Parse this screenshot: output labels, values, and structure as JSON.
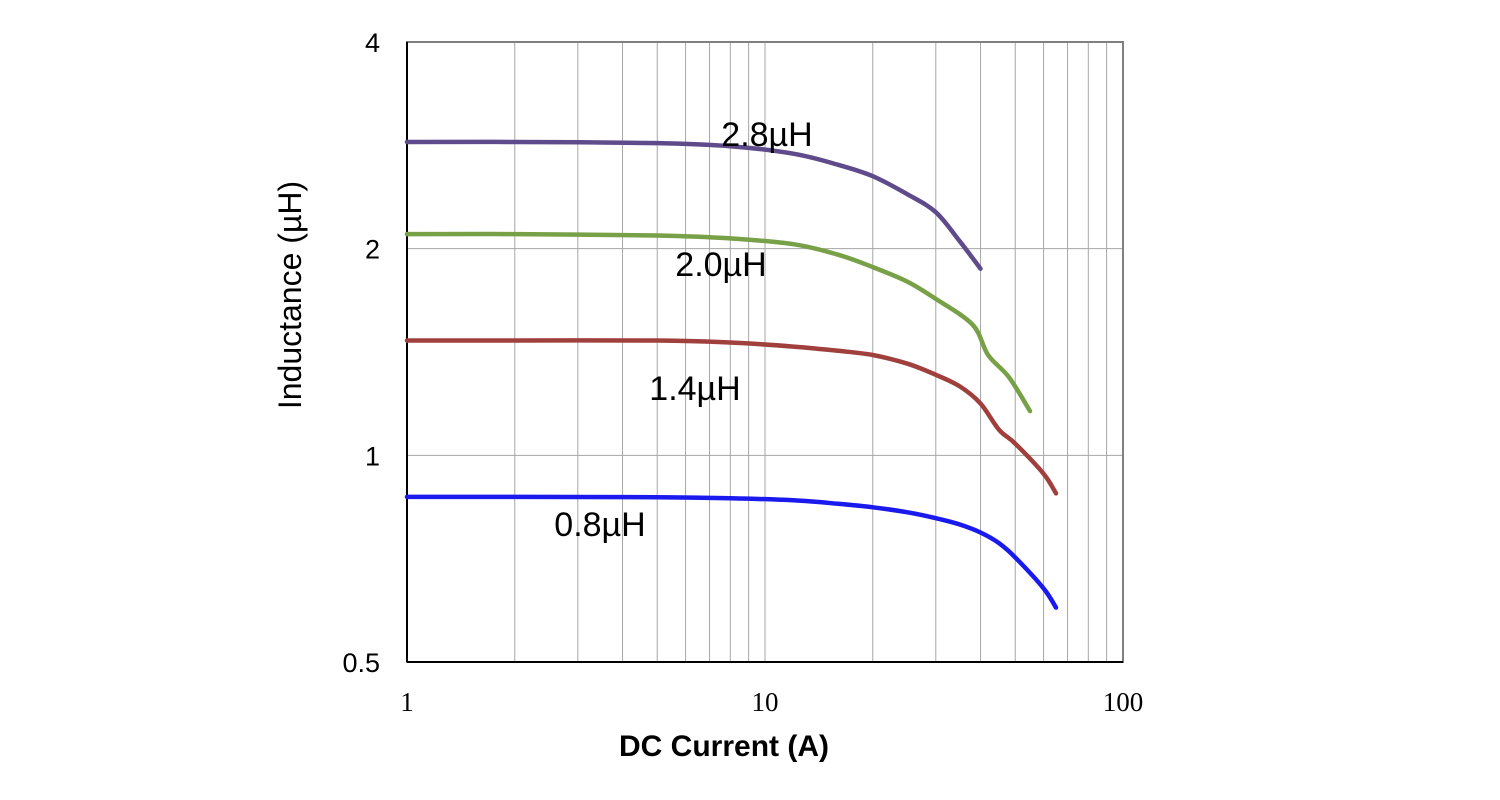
{
  "chart_data": {
    "type": "line",
    "title": "",
    "xlabel": "DC Current (A)",
    "ylabel": "Inductance (µH)",
    "xscale": "log",
    "yscale": "log",
    "xlim": [
      1,
      100
    ],
    "ylim": [
      0.5,
      4
    ],
    "x_ticks": [
      1,
      10,
      100
    ],
    "x_tick_labels": [
      "1",
      "10",
      "100"
    ],
    "y_ticks": [
      0.5,
      1,
      2,
      4
    ],
    "y_tick_labels": [
      "0.5",
      "1",
      "2",
      "4"
    ],
    "grid": true,
    "series": [
      {
        "name": "2.8µH",
        "color": "#5f4b8b",
        "x": [
          1,
          2,
          5,
          8,
          12,
          16,
          20,
          25,
          30,
          35,
          40
        ],
        "y": [
          2.86,
          2.86,
          2.85,
          2.82,
          2.75,
          2.65,
          2.55,
          2.4,
          2.26,
          2.05,
          1.87
        ]
      },
      {
        "name": "2.0µH",
        "color": "#77a047",
        "x": [
          1,
          2,
          5,
          8,
          12,
          16,
          20,
          25,
          30,
          38,
          42,
          48,
          55
        ],
        "y": [
          2.1,
          2.1,
          2.09,
          2.07,
          2.03,
          1.96,
          1.88,
          1.79,
          1.69,
          1.55,
          1.4,
          1.3,
          1.16
        ]
      },
      {
        "name": "1.4µH",
        "color": "#a0403d",
        "x": [
          1,
          2,
          5,
          8,
          12,
          16,
          20,
          25,
          30,
          35,
          40,
          45,
          50,
          60,
          65
        ],
        "y": [
          1.47,
          1.47,
          1.47,
          1.46,
          1.44,
          1.42,
          1.4,
          1.36,
          1.31,
          1.26,
          1.19,
          1.09,
          1.04,
          0.94,
          0.88
        ]
      },
      {
        "name": "0.8µH",
        "color": "#1a1aef",
        "x": [
          1,
          2,
          5,
          8,
          12,
          16,
          20,
          25,
          30,
          35,
          40,
          45,
          50,
          60,
          65
        ],
        "y": [
          0.87,
          0.87,
          0.869,
          0.866,
          0.86,
          0.85,
          0.84,
          0.826,
          0.81,
          0.793,
          0.772,
          0.745,
          0.71,
          0.64,
          0.6
        ]
      }
    ]
  }
}
